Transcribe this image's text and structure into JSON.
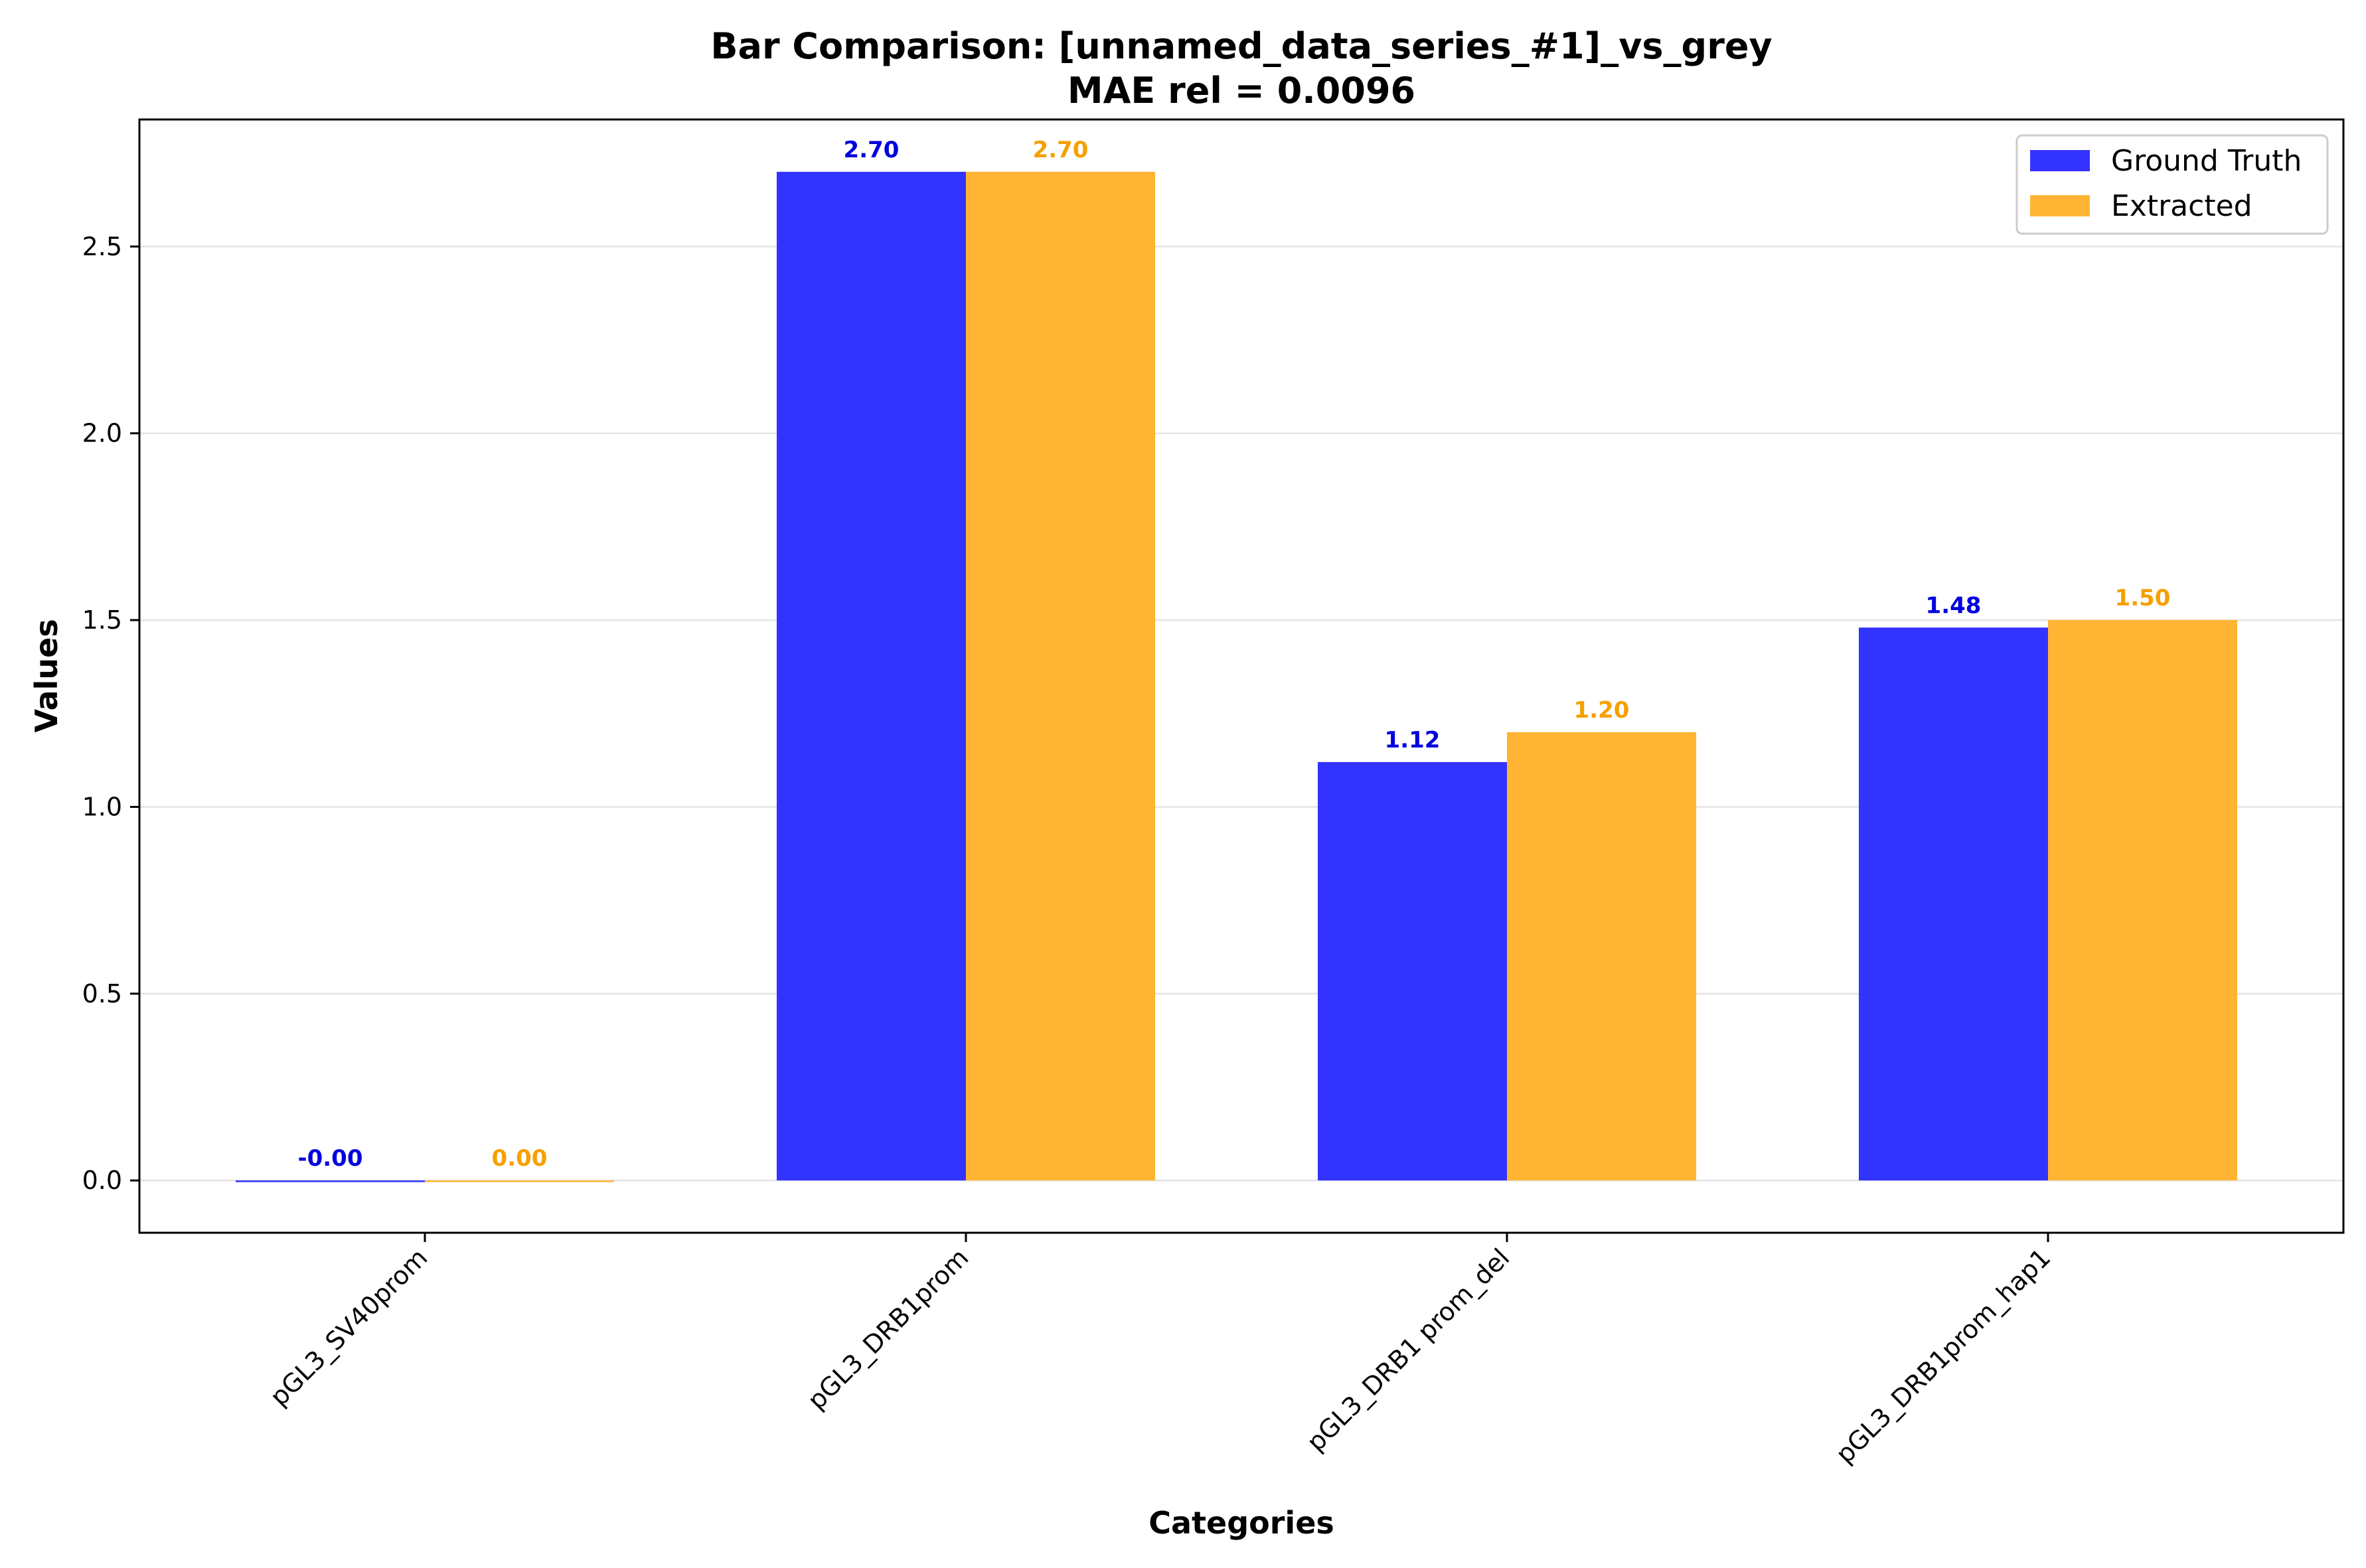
{
  "chart_data": {
    "type": "bar",
    "title": "Bar Comparison: [unnamed_data_series_#1]_vs_grey",
    "subtitle": "MAE rel = 0.0096",
    "xlabel": "Categories",
    "ylabel": "Values",
    "ylim": [
      -0.14,
      2.84
    ],
    "yticks": [
      0.0,
      0.5,
      1.0,
      1.5,
      2.0,
      2.5
    ],
    "ytick_labels": [
      "0.0",
      "0.5",
      "1.0",
      "1.5",
      "2.0",
      "2.5"
    ],
    "grid": "horizontal",
    "legend_position": "top-right",
    "categories": [
      "pGL3_SV40prom",
      "pGL3_DRB1prom",
      "pGL3_DRB1 prom_del",
      "pGL3_DRB1prom_hap1"
    ],
    "series": [
      {
        "name": "Ground Truth",
        "color": "#3333ff",
        "label_color": "#0000dd",
        "values": [
          -0.002,
          2.7,
          1.12,
          1.48
        ],
        "labels": [
          "-0.00",
          "2.70",
          "1.12",
          "1.48"
        ]
      },
      {
        "name": "Extracted",
        "color": "#ffb533",
        "label_color": "#f5a000",
        "values": [
          0.0,
          2.7,
          1.2,
          1.5
        ],
        "labels": [
          "0.00",
          "2.70",
          "1.20",
          "1.50"
        ]
      }
    ]
  }
}
